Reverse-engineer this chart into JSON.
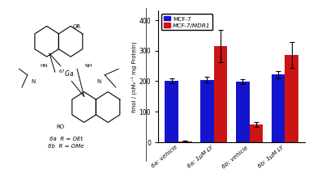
{
  "groups": [
    "6a: vehicle",
    "6a: 1μM LY",
    "6b: vehicle",
    "6b: 1μM LY"
  ],
  "blue_values": [
    200,
    205,
    198,
    222
  ],
  "red_values": [
    3,
    315,
    58,
    285
  ],
  "blue_errors": [
    8,
    10,
    8,
    12
  ],
  "red_errors": [
    1,
    52,
    8,
    42
  ],
  "blue_color": "#1414cc",
  "red_color": "#cc1414",
  "ylabel": "fmol / (nM₀⁻¹ mg Protein)",
  "ylim": [
    0,
    430
  ],
  "yticks": [
    0,
    100,
    200,
    300,
    400
  ],
  "legend_labels": [
    "MCF-7",
    "MCF-7/MDR1"
  ],
  "bar_width": 0.38,
  "background_color": "#ffffff",
  "left_text1": "6a R = OEt",
  "left_text2": "6b R = OMe"
}
